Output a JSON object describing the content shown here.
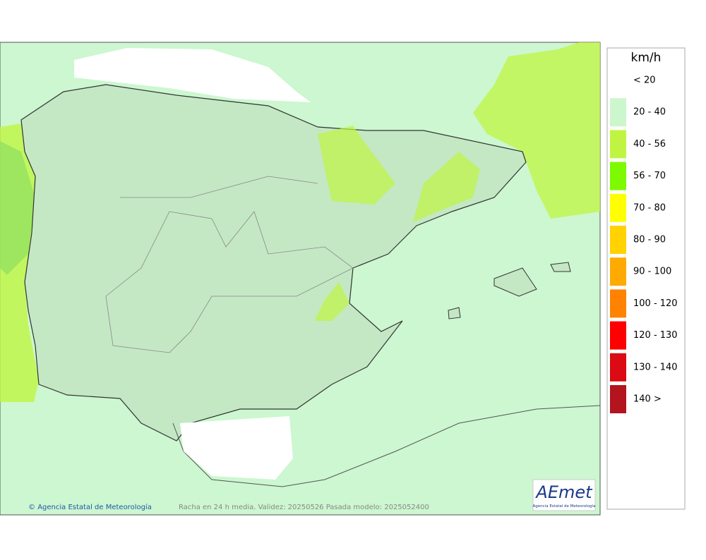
{
  "legend": {
    "unit": "km/h",
    "items": [
      {
        "label": "< 20",
        "color": null
      },
      {
        "label": "20 - 40",
        "color": "#ccf7cc"
      },
      {
        "label": "40 - 56",
        "color": "#bff542"
      },
      {
        "label": "56 - 70",
        "color": "#7dfa00"
      },
      {
        "label": "70 - 80",
        "color": "#ffff00"
      },
      {
        "label": "80 - 90",
        "color": "#ffd200"
      },
      {
        "label": "90 - 100",
        "color": "#ffaa00"
      },
      {
        "label": "100 - 120",
        "color": "#ff8200"
      },
      {
        "label": "120 - 130",
        "color": "#ff0000"
      },
      {
        "label": "130 - 140",
        "color": "#dc0a14"
      },
      {
        "label": "140 >",
        "color": "#b4141e"
      }
    ]
  },
  "footer": {
    "credit": "Agencia Estatal de Meteorología",
    "caption": "Racha en 24 h media. Validez: 20250526 Pasada modelo: 2025052400"
  },
  "logo": {
    "name": "AEmet",
    "subtitle": "Agencia Estatal de Meteorología"
  }
}
